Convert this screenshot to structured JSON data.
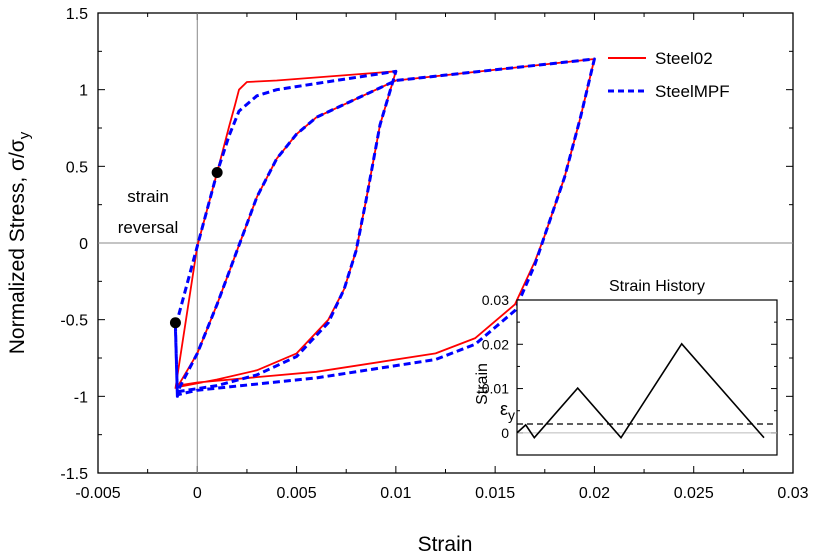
{
  "chart_data": [
    {
      "type": "line",
      "xlabel": "Strain",
      "ylabel": "Normalized Stress, σ/σ",
      "ylabel_sub": "y",
      "xlim": [
        -0.005,
        0.03
      ],
      "ylim": [
        -1.5,
        1.5
      ],
      "x_ticks": [
        -0.005,
        0,
        0.005,
        0.01,
        0.015,
        0.02,
        0.025,
        0.03
      ],
      "x_tick_labels": [
        "-0.005",
        "0",
        "0.005",
        "0.01",
        "0.015",
        "0.02",
        "0.025",
        "0.03"
      ],
      "y_ticks": [
        -1.5,
        -1,
        -0.5,
        0,
        0.5,
        1,
        1.5
      ],
      "y_tick_labels": [
        "-1.5",
        "-1",
        "-0.5",
        "0",
        "0.5",
        "1",
        "1.5"
      ],
      "legend_position": "top-right",
      "reference_lines": {
        "x": 0,
        "y": 0
      },
      "series": [
        {
          "name": "Steel02",
          "color": "#ff0000",
          "style": "solid",
          "points": [
            [
              -0.0011,
              -0.95
            ],
            [
              0.0,
              -0.02
            ],
            [
              0.001,
              0.46
            ],
            [
              0.0016,
              0.76
            ],
            [
              0.0019,
              0.9
            ],
            [
              0.0021,
              1.0
            ],
            [
              0.0025,
              1.05
            ],
            [
              0.004,
              1.06
            ],
            [
              0.01,
              1.12
            ],
            [
              0.0092,
              0.77
            ],
            [
              0.0085,
              0.28
            ],
            [
              0.008,
              -0.05
            ],
            [
              0.0074,
              -0.3
            ],
            [
              0.0066,
              -0.5
            ],
            [
              0.005,
              -0.72
            ],
            [
              0.003,
              -0.83
            ],
            [
              0.001,
              -0.89
            ],
            [
              -0.001,
              -0.94
            ],
            [
              0.0,
              -0.72
            ],
            [
              0.001,
              -0.4
            ],
            [
              0.002,
              -0.05
            ],
            [
              0.003,
              0.3
            ],
            [
              0.004,
              0.55
            ],
            [
              0.005,
              0.71
            ],
            [
              0.006,
              0.82
            ],
            [
              0.008,
              0.94
            ],
            [
              0.01,
              1.06
            ],
            [
              0.02,
              1.2
            ],
            [
              0.0193,
              0.82
            ],
            [
              0.0185,
              0.43
            ],
            [
              0.0175,
              0.05
            ],
            [
              0.017,
              -0.12
            ],
            [
              0.016,
              -0.4
            ],
            [
              0.014,
              -0.62
            ],
            [
              0.012,
              -0.72
            ],
            [
              0.006,
              -0.84
            ],
            [
              0.0,
              -0.91
            ],
            [
              -0.001,
              -0.93
            ]
          ]
        },
        {
          "name": "SteelMPF",
          "color": "#0000ff",
          "style": "dashed",
          "points": [
            [
              -0.0011,
              -0.53
            ],
            [
              -0.001,
              -1.0
            ],
            [
              -0.0011,
              -0.55
            ],
            [
              0.0,
              -0.02
            ],
            [
              0.001,
              0.46
            ],
            [
              0.0016,
              0.7
            ],
            [
              0.0021,
              0.86
            ],
            [
              0.003,
              0.96
            ],
            [
              0.004,
              1.0
            ],
            [
              0.006,
              1.04
            ],
            [
              0.01,
              1.12
            ],
            [
              0.0092,
              0.77
            ],
            [
              0.0085,
              0.28
            ],
            [
              0.008,
              -0.05
            ],
            [
              0.0074,
              -0.3
            ],
            [
              0.0066,
              -0.52
            ],
            [
              0.005,
              -0.74
            ],
            [
              0.003,
              -0.86
            ],
            [
              0.001,
              -0.93
            ],
            [
              -0.001,
              -0.97
            ],
            [
              0.0,
              -0.72
            ],
            [
              0.001,
              -0.4
            ],
            [
              0.002,
              -0.05
            ],
            [
              0.003,
              0.3
            ],
            [
              0.004,
              0.55
            ],
            [
              0.005,
              0.71
            ],
            [
              0.006,
              0.82
            ],
            [
              0.008,
              0.94
            ],
            [
              0.01,
              1.06
            ],
            [
              0.02,
              1.2
            ],
            [
              0.0193,
              0.82
            ],
            [
              0.0185,
              0.43
            ],
            [
              0.0175,
              0.05
            ],
            [
              0.017,
              -0.14
            ],
            [
              0.016,
              -0.44
            ],
            [
              0.014,
              -0.66
            ],
            [
              0.012,
              -0.76
            ],
            [
              0.006,
              -0.88
            ],
            [
              0.0,
              -0.96
            ],
            [
              -0.001,
              -0.99
            ]
          ]
        }
      ],
      "markers": [
        {
          "label": "strain reversal",
          "x": 0.001,
          "y": 0.46
        },
        {
          "label": "strain reversal",
          "x": -0.0011,
          "y": -0.52
        }
      ],
      "annotation": {
        "line1": "strain",
        "line2": "reversal"
      }
    },
    {
      "type": "line",
      "title": "Strain History",
      "ylabel": "Strain",
      "xlim": [
        0,
        3
      ],
      "ylim": [
        -0.005,
        0.03
      ],
      "y_ticks": [
        0,
        0.01,
        0.02,
        0.03
      ],
      "y_tick_labels": [
        "0",
        "0.01",
        "0.02",
        "0.03"
      ],
      "yield_label": "ε",
      "yield_label_sub": "y",
      "yield_strain": 0.002,
      "series": [
        {
          "color": "#000000",
          "style": "solid",
          "points": [
            [
              0,
              0
            ],
            [
              0.1,
              0.0018
            ],
            [
              0.2,
              -0.0011
            ],
            [
              0.7,
              0.0101
            ],
            [
              1.2,
              -0.0011
            ],
            [
              1.9,
              0.0201
            ],
            [
              2.85,
              -0.0011
            ]
          ]
        }
      ]
    }
  ],
  "legend": {
    "items": [
      {
        "label": "Steel02",
        "color": "#ff0000",
        "style": "solid"
      },
      {
        "label": "SteelMPF",
        "color": "#0000ff",
        "style": "dashed"
      }
    ]
  }
}
